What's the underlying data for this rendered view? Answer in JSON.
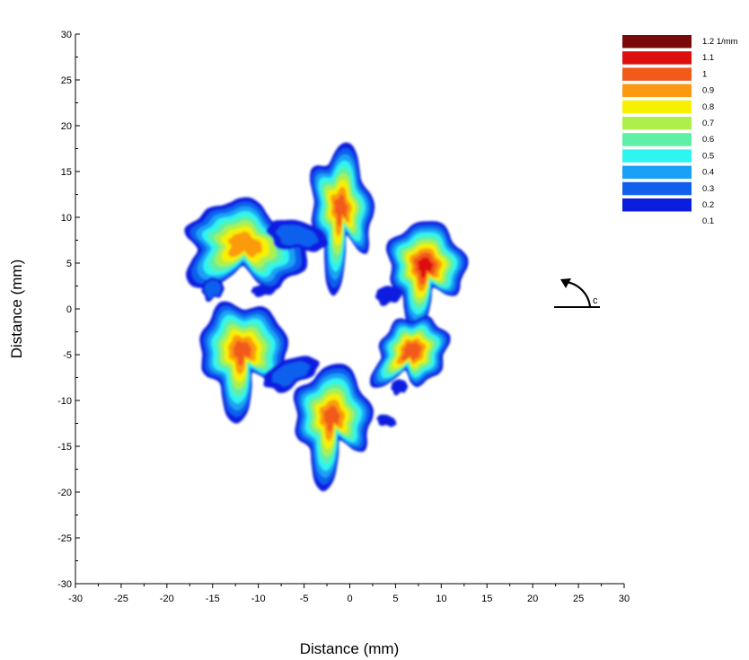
{
  "chart_data": {
    "type": "heatmap",
    "title": "",
    "xlabel": "Distance (mm)",
    "ylabel": "Distance (mm)",
    "xlim": [
      -30,
      30
    ],
    "ylim": [
      -30,
      30
    ],
    "xticks": [
      -30,
      -25,
      -20,
      -15,
      -10,
      -5,
      0,
      5,
      10,
      15,
      20,
      25,
      30
    ],
    "yticks": [
      30,
      25,
      20,
      15,
      10,
      5,
      0,
      -5,
      -10,
      -15,
      -20,
      -25,
      -30
    ],
    "colorbar": {
      "unit": "1/mm",
      "levels": [
        {
          "label": "1.2 1/mm",
          "value": 1.2,
          "color": "#7a0a0a"
        },
        {
          "label": "1.1",
          "value": 1.1,
          "color": "#dd1010"
        },
        {
          "label": "1",
          "value": 1.0,
          "color": "#f25a1a"
        },
        {
          "label": "0.9",
          "value": 0.9,
          "color": "#fb9a10"
        },
        {
          "label": "0.8",
          "value": 0.8,
          "color": "#f8f000"
        },
        {
          "label": "0.7",
          "value": 0.7,
          "color": "#aef04a"
        },
        {
          "label": "0.6",
          "value": 0.6,
          "color": "#5ef0a6"
        },
        {
          "label": "0.5",
          "value": 0.5,
          "color": "#2ff5f0"
        },
        {
          "label": "0.4",
          "value": 0.4,
          "color": "#1aa0f5"
        },
        {
          "label": "0.3",
          "value": 0.3,
          "color": "#1060ee"
        },
        {
          "label": "0.2",
          "value": 0.2,
          "color": "#0a1ee0"
        },
        {
          "label": "0.1",
          "value": 0.1
        }
      ]
    },
    "hotspots": [
      {
        "x": -1.0,
        "y": 11.5,
        "peak": 1.0
      },
      {
        "x": -11.5,
        "y": 7.0,
        "peak": 0.95
      },
      {
        "x": 8.5,
        "y": 4.5,
        "peak": 1.1
      },
      {
        "x": 7.0,
        "y": -5.0,
        "peak": 1.05
      },
      {
        "x": -12.0,
        "y": -4.5,
        "peak": 1.0
      },
      {
        "x": -1.5,
        "y": -11.5,
        "peak": 1.0
      }
    ],
    "rotation_indicator": {
      "symbol": "c",
      "direction": "counter-clockwise"
    },
    "grid": false,
    "legend": "top-right"
  }
}
